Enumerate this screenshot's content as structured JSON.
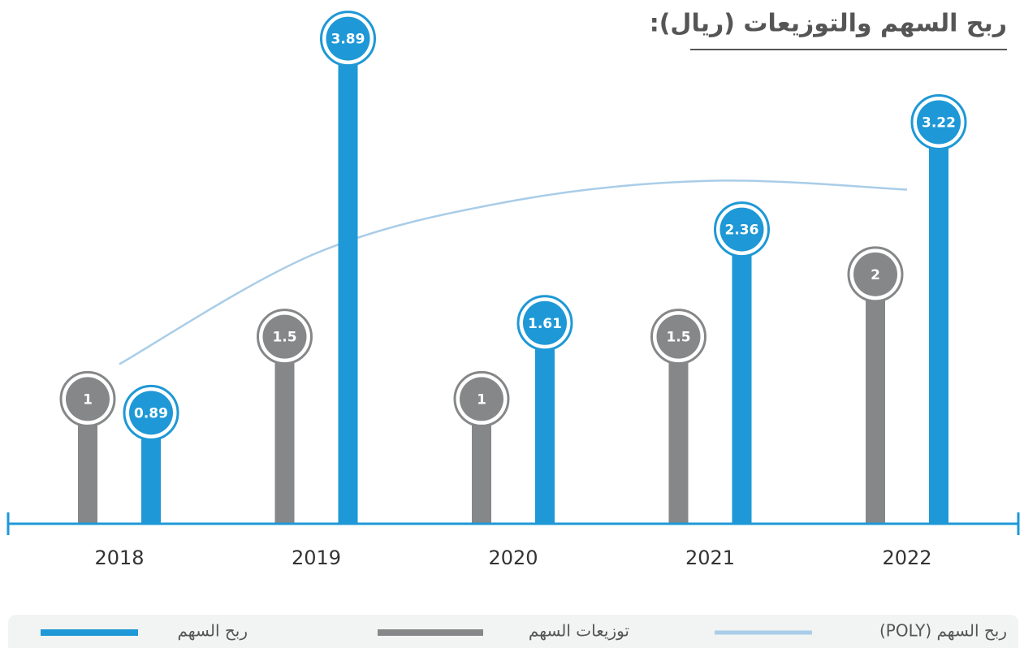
{
  "chart_data": {
    "type": "lollipop",
    "title": "ربح السهم والتوزيعات (ريال):",
    "categories": [
      "2018",
      "2019",
      "2020",
      "2021",
      "2022"
    ],
    "series": [
      {
        "name": "ربح السهم",
        "color": "#1e98d6",
        "values": [
          0.89,
          3.89,
          1.61,
          2.36,
          3.22
        ]
      },
      {
        "name": "توزيعات السهم",
        "color": "#868788",
        "values": [
          1,
          1.5,
          1,
          1.5,
          2
        ]
      },
      {
        "name": "ربح السهم (POLY)",
        "color": "#a9cde8",
        "values": [
          1.28,
          2.17,
          2.59,
          2.75,
          2.68
        ]
      }
    ],
    "ylim": [
      0,
      4.2
    ]
  }
}
